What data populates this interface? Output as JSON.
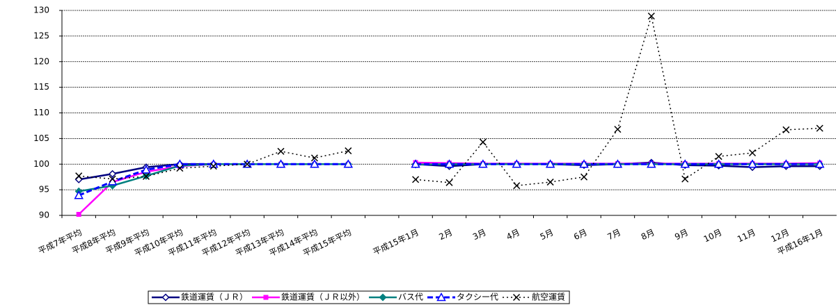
{
  "chart_data": {
    "type": "line",
    "categories": [
      "平成7年平均",
      "平成8年平均",
      "平成9年平均",
      "平成10年平均",
      "平成11年平均",
      "平成12年平均",
      "平成13年平均",
      "平成14年平均",
      "平成15年平均",
      null,
      "平成15年1月",
      "2月",
      "3月",
      "4月",
      "5月",
      "6月",
      "7月",
      "8月",
      "9月",
      "10月",
      "11月",
      "12月",
      "平成16年1月"
    ],
    "series": [
      {
        "name": "鉄道運賃（ＪＲ）",
        "color": "#000080",
        "line_style": "solid",
        "marker": "open-diamond",
        "values": [
          97.0,
          98.1,
          99.4,
          100,
          100,
          100,
          100,
          100,
          100,
          null,
          100,
          99.6,
          100,
          100,
          100,
          99.8,
          100,
          100.3,
          99.8,
          99.7,
          99.4,
          99.6,
          99.6
        ]
      },
      {
        "name": "鉄道運賃（ＪＲ以外）",
        "color": "#ff00ff",
        "line_style": "solid",
        "marker": "square",
        "values": [
          90.2,
          96.5,
          98.5,
          99.6,
          100,
          100,
          100,
          100,
          100,
          null,
          100.3,
          100.2,
          100.1,
          100.1,
          100.1,
          100.1,
          100.1,
          100.1,
          100.1,
          100.1,
          100.1,
          100.1,
          100.2
        ]
      },
      {
        "name": "バス代",
        "color": "#008080",
        "line_style": "solid",
        "marker": "diamond",
        "values": [
          94.7,
          95.8,
          97.7,
          99.7,
          100,
          100,
          100,
          100,
          100,
          null,
          99.9,
          100,
          100,
          100,
          100,
          100,
          100,
          100,
          100,
          100,
          100,
          100,
          100
        ]
      },
      {
        "name": "タクシー代",
        "color": "#0000ff",
        "line_style": "dashed",
        "marker": "open-triangle",
        "values": [
          93.9,
          96.6,
          98.9,
          100,
          100,
          100,
          100,
          100,
          100,
          null,
          100,
          100,
          100,
          100,
          100,
          100,
          100,
          100,
          100,
          100,
          100,
          100,
          100
        ]
      },
      {
        "name": "航空運賃",
        "color": "#000000",
        "line_style": "dotted",
        "marker": "cross",
        "values": [
          97.7,
          97.1,
          97.6,
          99.2,
          99.6,
          100,
          102.5,
          101.2,
          102.6,
          null,
          97.0,
          96.4,
          104.3,
          95.8,
          96.5,
          97.5,
          106.8,
          128.9,
          97.1,
          101.5,
          102.2,
          106.7,
          107.0
        ]
      }
    ],
    "ylim": [
      90,
      130
    ],
    "yticks": [
      90,
      95,
      100,
      105,
      110,
      115,
      120,
      125,
      130
    ],
    "grid": true,
    "legend": "bottom"
  }
}
